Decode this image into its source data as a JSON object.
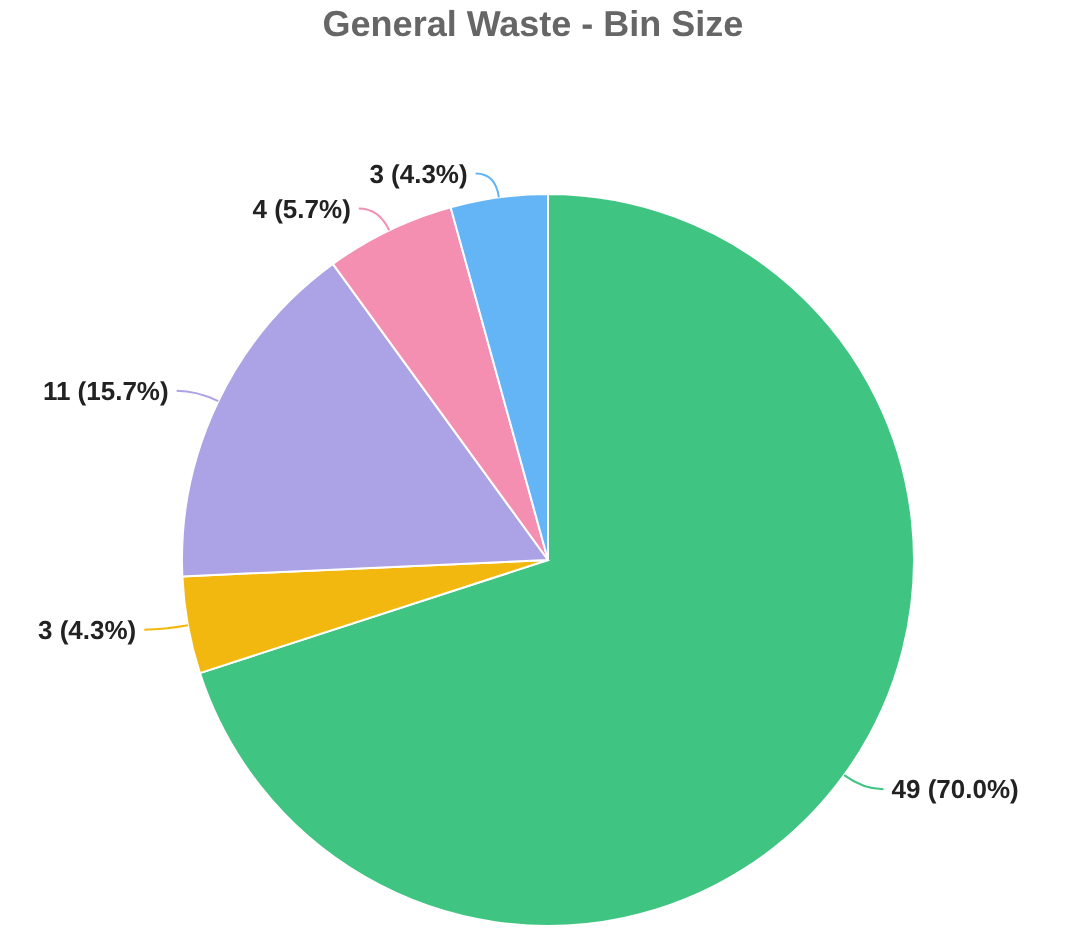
{
  "chart_data": {
    "type": "pie",
    "title": "General Waste - Bin Size",
    "categories": [
      null,
      null,
      null,
      null,
      null
    ],
    "values": [
      49,
      3,
      11,
      4,
      3
    ],
    "colors": [
      "#40c482",
      "#f3b80f",
      "#aca3e6",
      "#f48fb2",
      "#64b5f6"
    ],
    "value_labels": [
      "49 (70.0%)",
      "3 (4.3%)",
      "11 (15.7%)",
      "4 (5.7%)",
      "3 (4.3%)"
    ]
  }
}
